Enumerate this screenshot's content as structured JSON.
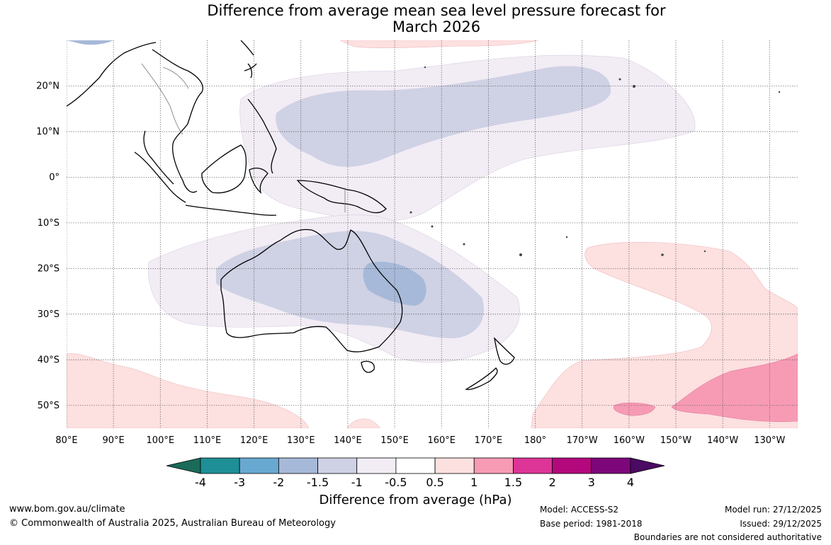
{
  "title": {
    "line1": "Difference from average mean sea level pressure forecast for",
    "line2": "March 2026"
  },
  "map": {
    "lat_labels": [
      "20°N",
      "10°N",
      "0°",
      "10°S",
      "20°S",
      "30°S",
      "40°S",
      "50°S"
    ],
    "lat_values": [
      20,
      10,
      0,
      -10,
      -20,
      -30,
      -40,
      -50
    ],
    "lon_labels": [
      "80°E",
      "90°E",
      "100°E",
      "110°E",
      "120°E",
      "130°E",
      "140°E",
      "150°E",
      "160°E",
      "170°E",
      "180°",
      "170°W",
      "160°W",
      "150°W",
      "140°W",
      "130°W"
    ],
    "lon_values": [
      80,
      90,
      100,
      110,
      120,
      130,
      140,
      150,
      160,
      170,
      180,
      190,
      200,
      210,
      220,
      230
    ],
    "extent": {
      "lon_min": 80,
      "lon_max": 236,
      "lat_min": -55,
      "lat_max": 30
    }
  },
  "colorbar": {
    "tick_labels": [
      "-4",
      "-3",
      "-2",
      "-1.5",
      "-1",
      "-0.5",
      "0.5",
      "1",
      "1.5",
      "2",
      "3",
      "4"
    ],
    "colors": [
      "#1a6b5a",
      "#1e8f96",
      "#68a9d1",
      "#a7b9d8",
      "#cfd1e4",
      "#f2ecf5",
      "#ffffff",
      "#fde0e0",
      "#f79bb5",
      "#dc3597",
      "#b4087d",
      "#7d077a",
      "#4b0a63"
    ],
    "label": "Difference from average (hPa)"
  },
  "footer": {
    "url": "www.bom.gov.au/climate",
    "copyright": "© Commonwealth of Australia 2025, Australian Bureau of Meteorology",
    "model": "Model: ACCESS-S2",
    "base_period": "Base period: 1981-2018",
    "model_run": "Model run: 27/12/2025",
    "issued": "Issued: 29/12/2025",
    "disclaimer": "Boundaries are not considered authoritative"
  }
}
